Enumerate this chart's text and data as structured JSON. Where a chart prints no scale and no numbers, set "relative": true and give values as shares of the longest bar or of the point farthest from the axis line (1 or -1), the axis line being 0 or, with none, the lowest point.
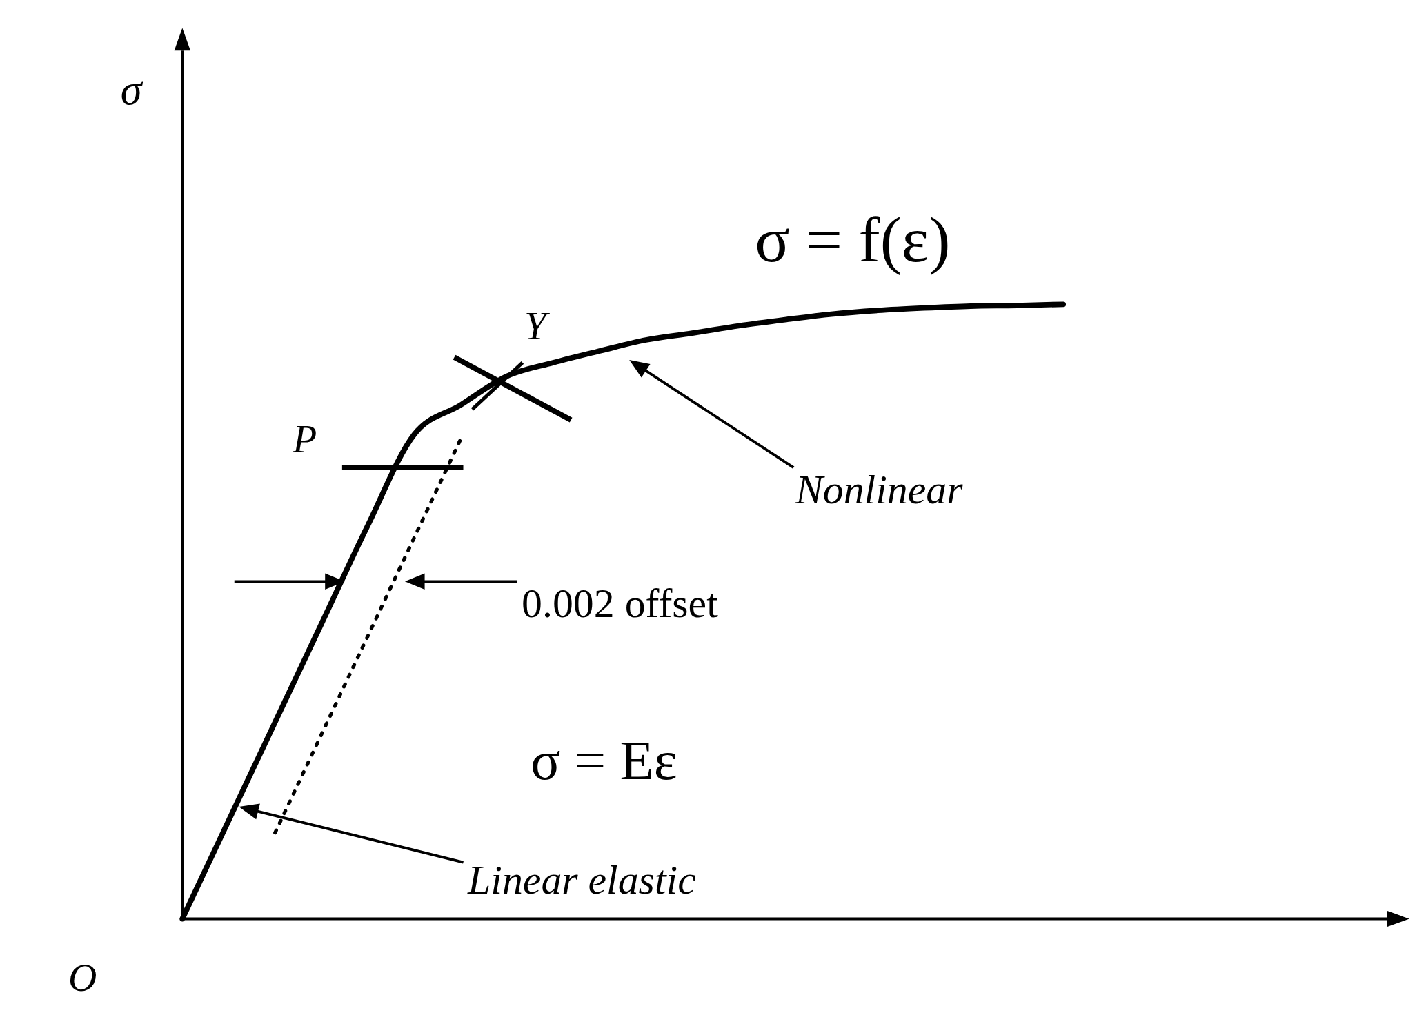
{
  "chart_data": {
    "type": "line",
    "relative": true,
    "ylabel": "σ",
    "categories": [
      null,
      null,
      null,
      null,
      null,
      null,
      null,
      null,
      null,
      null,
      null,
      null,
      null,
      null,
      null,
      null,
      null,
      null,
      null,
      null,
      null,
      null,
      null,
      null,
      null,
      null,
      null
    ],
    "series": [
      {
        "color": "#000000",
        "line_style": "solid",
        "values": [
          0,
          0.16,
          0.32,
          0.48,
          0.64,
          0.788,
          0.836,
          0.883,
          0.905,
          0.924,
          0.942,
          0.953,
          0.965,
          0.975,
          0.984,
          0.99,
          0.994,
          0.997,
          0.998,
          1,
          null,
          null,
          null,
          null,
          null,
          null,
          null
        ]
      },
      {
        "color": "#000000",
        "line_style": "dotted",
        "values": [
          null,
          null,
          0.14,
          0.3,
          0.46,
          0.62,
          0.78,
          null,
          null,
          null,
          null,
          null,
          null,
          null,
          null,
          null,
          null,
          null,
          null,
          null,
          null,
          null,
          null,
          null,
          null,
          null,
          null
        ]
      }
    ],
    "annotations": [
      "σ = f(ε)",
      "Y",
      "P",
      "Nonlinear",
      "0.002 offset",
      "σ = Eε",
      "Linear elastic",
      "O"
    ]
  }
}
